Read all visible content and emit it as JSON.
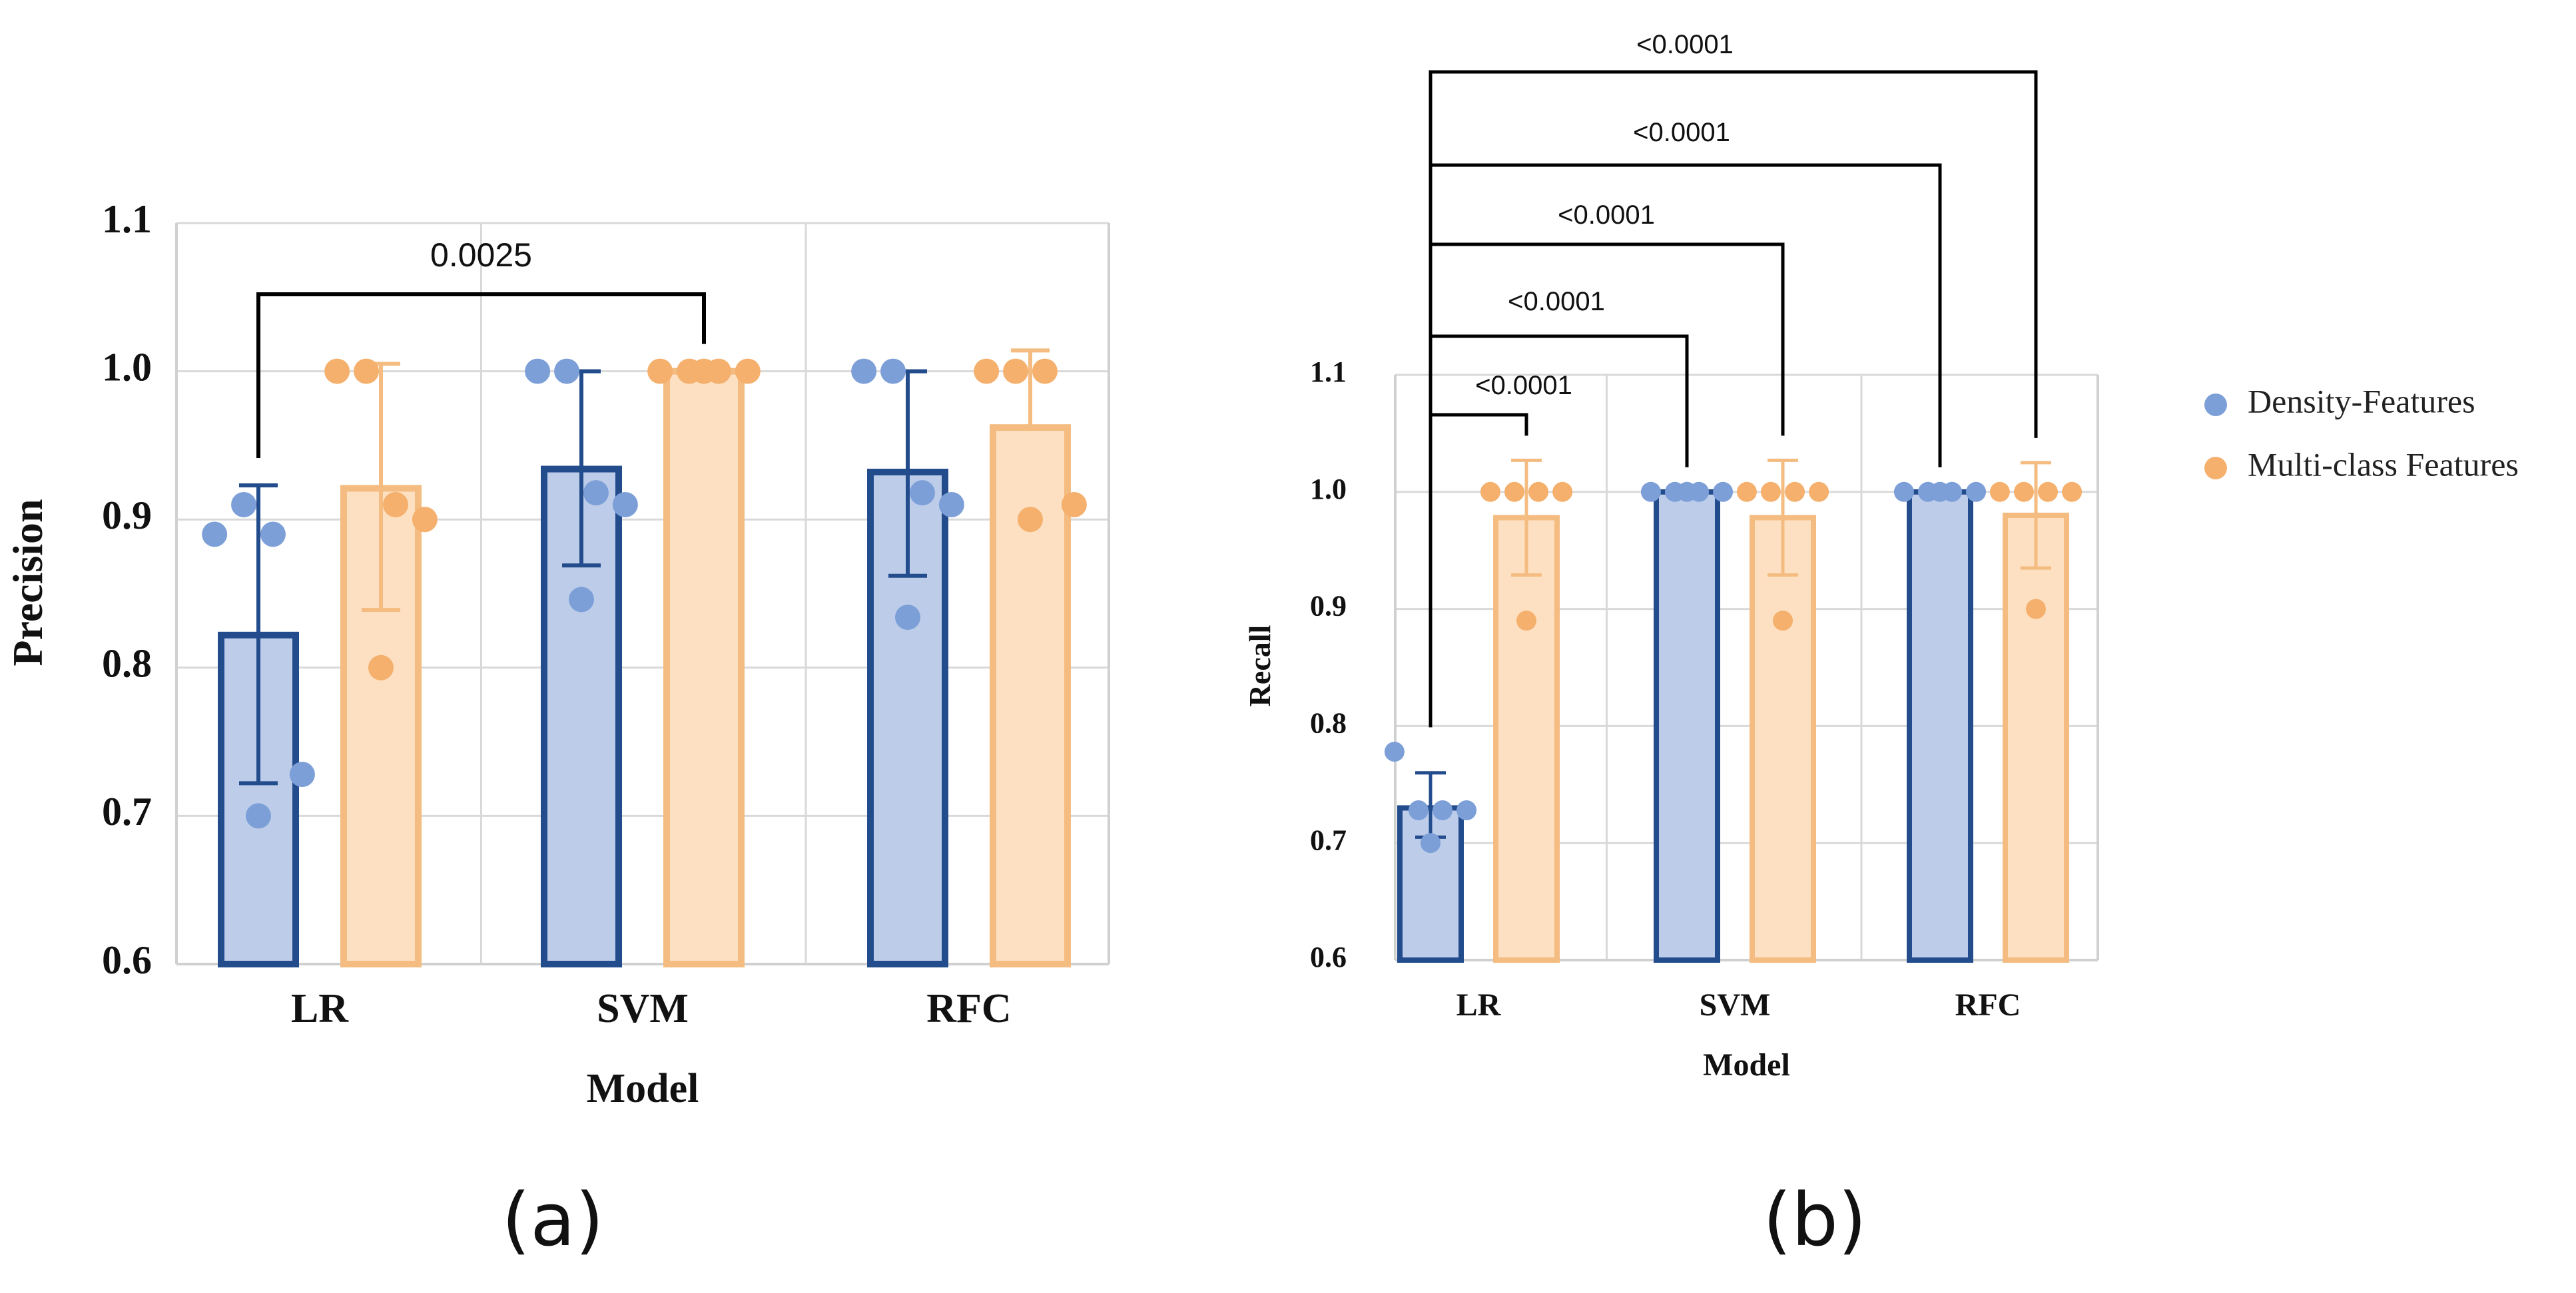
{
  "colors": {
    "density_fill": "#bdcde9",
    "density_stroke": "#234c8d",
    "density_dot": "#7c9fd8",
    "multi_fill": "#fde0c2",
    "multi_stroke": "#f4bc80",
    "multi_dot": "#f4b06c",
    "grid": "#d9d9d9",
    "axis": "#d0d0d0",
    "bracket": "#000000"
  },
  "legend": {
    "items": [
      {
        "label": "Density-Features",
        "color": "#7c9fd8"
      },
      {
        "label": "Multi-class Features",
        "color": "#f4b06c"
      }
    ]
  },
  "chart_data": [
    {
      "type": "bar",
      "panel_label": "(a)",
      "title": "",
      "xlabel": "Model",
      "ylabel": "Precision",
      "ylim": [
        0.6,
        1.1
      ],
      "yticks": [
        "0.6",
        "0.7",
        "0.8",
        "0.9",
        "1.0",
        "1.1"
      ],
      "grid": true,
      "categories": [
        "LR",
        "SVM",
        "RFC"
      ],
      "series": [
        {
          "name": "Density-Features",
          "values": [
            0.822,
            0.934,
            0.932
          ],
          "err_low": [
            0.722,
            0.869,
            0.862
          ],
          "err_high": [
            0.923,
            1.0,
            1.0
          ],
          "points": [
            [
              0.89,
              0.91,
              0.89,
              0.728,
              0.7
            ],
            [
              1.0,
              1.0,
              0.918,
              0.91,
              0.846
            ],
            [
              1.0,
              1.0,
              0.918,
              0.91,
              0.834
            ]
          ]
        },
        {
          "name": "Multi-class Features",
          "values": [
            0.921,
            1.0,
            0.962
          ],
          "err_low": [
            0.839,
            1.0,
            0.962
          ],
          "err_high": [
            1.005,
            1.0,
            1.014
          ],
          "points": [
            [
              1.0,
              1.0,
              0.91,
              0.9,
              0.8
            ],
            [
              1.0,
              1.0,
              1.0,
              1.0,
              1.0
            ],
            [
              1.0,
              1.0,
              1.0,
              0.91,
              0.9
            ]
          ]
        }
      ],
      "annotations": [
        {
          "text": "0.0025",
          "from": "LR:Density-Features",
          "to": "SVM:Multi-class Features"
        }
      ]
    },
    {
      "type": "bar",
      "panel_label": "(b)",
      "title": "",
      "xlabel": "Model",
      "ylabel": "Recall",
      "ylim": [
        0.6,
        1.1
      ],
      "yticks": [
        "0.6",
        "0.7",
        "0.8",
        "0.9",
        "1.0",
        "1.1"
      ],
      "grid": true,
      "categories": [
        "LR",
        "SVM",
        "RFC"
      ],
      "series": [
        {
          "name": "Density-Features",
          "values": [
            0.73,
            1.0,
            1.0
          ],
          "err_low": [
            0.705,
            1.0,
            1.0
          ],
          "err_high": [
            0.76,
            1.0,
            1.0
          ],
          "points": [
            [
              0.778,
              0.728,
              0.728,
              0.728,
              0.7
            ],
            [
              1.0,
              1.0,
              1.0,
              1.0,
              1.0
            ],
            [
              1.0,
              1.0,
              1.0,
              1.0,
              1.0
            ]
          ]
        },
        {
          "name": "Multi-class Features",
          "values": [
            0.978,
            0.978,
            0.98
          ],
          "err_low": [
            0.929,
            0.929,
            0.935
          ],
          "err_high": [
            1.027,
            1.027,
            1.025
          ],
          "points": [
            [
              1.0,
              1.0,
              1.0,
              1.0,
              0.89
            ],
            [
              1.0,
              1.0,
              1.0,
              1.0,
              0.89
            ],
            [
              1.0,
              1.0,
              1.0,
              1.0,
              0.9
            ]
          ]
        }
      ],
      "annotations": [
        {
          "text": "<0.0001",
          "from": "LR:Density-Features",
          "to": "LR:Multi-class Features"
        },
        {
          "text": "<0.0001",
          "from": "LR:Density-Features",
          "to": "SVM:Density-Features"
        },
        {
          "text": "<0.0001",
          "from": "LR:Density-Features",
          "to": "SVM:Multi-class Features"
        },
        {
          "text": "<0.0001",
          "from": "LR:Density-Features",
          "to": "RFC:Density-Features"
        },
        {
          "text": "<0.0001",
          "from": "LR:Density-Features",
          "to": "RFC:Multi-class Features"
        }
      ]
    }
  ]
}
